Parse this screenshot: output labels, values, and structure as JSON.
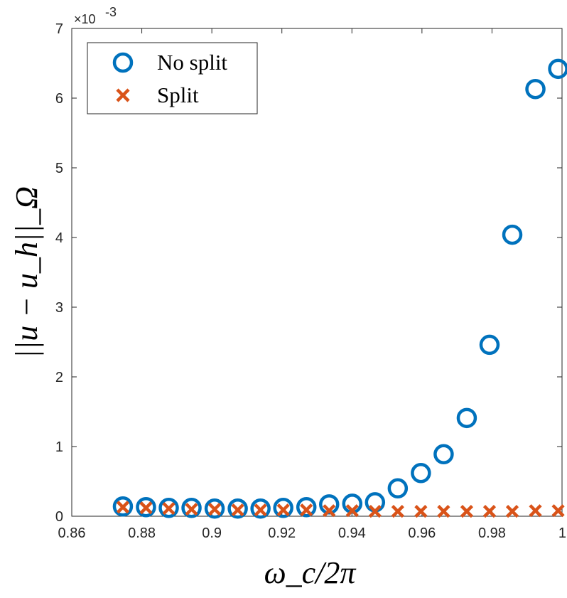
{
  "chart_data": {
    "type": "scatter",
    "title": "",
    "xlabel": "ω_c/2π",
    "ylabel": "||u − u_h||_Ω",
    "xlim": [
      0.86,
      1.0
    ],
    "ylim": [
      0,
      7
    ],
    "y_exponent_label": "×10",
    "y_exponent_power": "-3",
    "x_ticks": [
      0.86,
      0.88,
      0.9,
      0.92,
      0.94,
      0.96,
      0.98,
      1.0
    ],
    "x_tick_labels": [
      "0.86",
      "0.88",
      "0.9",
      "0.92",
      "0.94",
      "0.96",
      "0.98",
      "1"
    ],
    "y_ticks": [
      0,
      1,
      2,
      3,
      4,
      5,
      6,
      7
    ],
    "y_tick_labels": [
      "0",
      "1",
      "2",
      "3",
      "4",
      "5",
      "6",
      "7"
    ],
    "grid": false,
    "legend_position": "top-left",
    "series": [
      {
        "name": "No split",
        "marker": "circle",
        "color": "#0072BD",
        "x": [
          0.8746,
          0.8812,
          0.8877,
          0.8942,
          0.9008,
          0.9074,
          0.9139,
          0.9204,
          0.927,
          0.9335,
          0.9401,
          0.9466,
          0.9531,
          0.9597,
          0.9662,
          0.9728,
          0.9793,
          0.9858,
          0.9924,
          0.9989
        ],
        "values": [
          0.14,
          0.13,
          0.12,
          0.12,
          0.11,
          0.11,
          0.11,
          0.12,
          0.13,
          0.17,
          0.18,
          0.2,
          0.4,
          0.62,
          0.89,
          1.41,
          2.46,
          4.04,
          6.13,
          6.42
        ]
      },
      {
        "name": "Split",
        "marker": "x",
        "color": "#D95319",
        "x": [
          0.8746,
          0.8812,
          0.8877,
          0.8942,
          0.9008,
          0.9074,
          0.9139,
          0.9204,
          0.927,
          0.9335,
          0.9401,
          0.9466,
          0.9531,
          0.9597,
          0.9662,
          0.9728,
          0.9793,
          0.9858,
          0.9924,
          0.9989
        ],
        "values": [
          0.13,
          0.12,
          0.11,
          0.1,
          0.1,
          0.09,
          0.09,
          0.09,
          0.09,
          0.08,
          0.08,
          0.07,
          0.07,
          0.07,
          0.07,
          0.07,
          0.07,
          0.07,
          0.08,
          0.08
        ]
      }
    ]
  }
}
